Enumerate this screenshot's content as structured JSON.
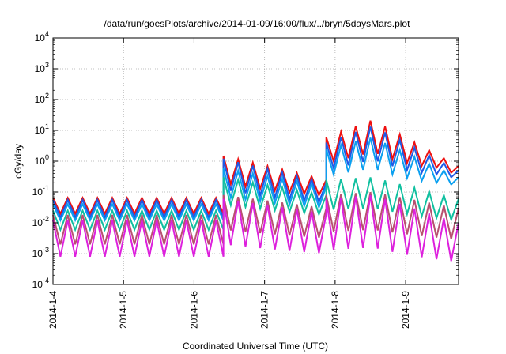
{
  "chart_data": {
    "type": "line",
    "title": "/data/run/goesPlots/archive/2014-01-09/16:00/flux/../bryn/5daysMars.plot",
    "xlabel": "Coordinated Universal Time (UTC)",
    "ylabel": "cGy/day",
    "y_scale": "log",
    "ylim": [
      0.0001,
      10000
    ],
    "xlim": [
      "2014-01-04",
      "2014-01-09 18:00"
    ],
    "grid": true,
    "y_ticks": [
      {
        "base": "10",
        "exp": "-4",
        "value": 0.0001
      },
      {
        "base": "10",
        "exp": "-3",
        "value": 0.001
      },
      {
        "base": "10",
        "exp": "-2",
        "value": 0.01
      },
      {
        "base": "10",
        "exp": "-1",
        "value": 0.1
      },
      {
        "base": "10",
        "exp": "0",
        "value": 1
      },
      {
        "base": "10",
        "exp": "1",
        "value": 10
      },
      {
        "base": "10",
        "exp": "2",
        "value": 100
      },
      {
        "base": "10",
        "exp": "3",
        "value": 1000
      },
      {
        "base": "10",
        "exp": "4",
        "value": 10000
      }
    ],
    "x_ticks": [
      {
        "label": "2014-1-4",
        "value": "2014-01-04"
      },
      {
        "label": "2014-1-5",
        "value": "2014-01-05"
      },
      {
        "label": "2014-1-6",
        "value": "2014-01-06"
      },
      {
        "label": "2014-1-7",
        "value": "2014-01-07"
      },
      {
        "label": "2014-1-8",
        "value": "2014-01-08"
      },
      {
        "label": "2014-1-9",
        "value": "2014-01-09"
      }
    ],
    "series": [
      {
        "color": "#ee1111",
        "phases": [
          {
            "start": "2014-01-04 00:00",
            "end": "2014-01-06 10:00",
            "low": 0.02,
            "high": 0.065,
            "profile": "flat"
          },
          {
            "start": "2014-01-06 10:00",
            "end": "2014-01-07 21:00",
            "low": 0.1,
            "high": 1.5,
            "profile": "decay",
            "decay_to": 0.25
          },
          {
            "start": "2014-01-07 21:00",
            "end": "2014-01-09 18:00",
            "low": 1.0,
            "high": 22,
            "profile": "hump",
            "start_peak": 6,
            "mid_peak": 22,
            "end_peak": 0.7
          }
        ]
      },
      {
        "color": "#1e5ae6",
        "phases": [
          {
            "start": "2014-01-04 00:00",
            "end": "2014-01-06 10:00",
            "low": 0.015,
            "high": 0.055,
            "profile": "flat"
          },
          {
            "start": "2014-01-06 10:00",
            "end": "2014-01-07 21:00",
            "low": 0.06,
            "high": 1.2,
            "profile": "decay",
            "decay_to": 0.2
          },
          {
            "start": "2014-01-07 21:00",
            "end": "2014-01-09 18:00",
            "low": 0.6,
            "high": 15,
            "profile": "hump",
            "start_peak": 4,
            "mid_peak": 14,
            "end_peak": 0.5
          }
        ]
      },
      {
        "color": "#0aa0f0",
        "phases": [
          {
            "start": "2014-01-04 00:00",
            "end": "2014-01-06 10:00",
            "low": 0.012,
            "high": 0.04,
            "profile": "flat"
          },
          {
            "start": "2014-01-06 10:00",
            "end": "2014-01-07 21:00",
            "low": 0.035,
            "high": 0.6,
            "profile": "decay",
            "decay_to": 0.15
          },
          {
            "start": "2014-01-07 21:00",
            "end": "2014-01-09 18:00",
            "low": 0.3,
            "high": 6,
            "profile": "hump",
            "start_peak": 2.5,
            "mid_peak": 6,
            "end_peak": 0.3
          }
        ]
      },
      {
        "color": "#10c0a0",
        "phases": [
          {
            "start": "2014-01-04 00:00",
            "end": "2014-01-06 10:00",
            "low": 0.006,
            "high": 0.025,
            "profile": "flat"
          },
          {
            "start": "2014-01-06 10:00",
            "end": "2014-01-07 21:00",
            "low": 0.02,
            "high": 0.3,
            "profile": "decay",
            "decay_to": 0.08
          },
          {
            "start": "2014-01-07 21:00",
            "end": "2014-01-09 18:00",
            "low": 0.015,
            "high": 0.3,
            "profile": "hump",
            "start_peak": 0.25,
            "mid_peak": 0.3,
            "end_peak": 0.06
          }
        ]
      },
      {
        "color": "#b85070",
        "phases": [
          {
            "start": "2014-01-04 00:00",
            "end": "2014-01-06 10:00",
            "low": 0.002,
            "high": 0.018,
            "profile": "flat"
          },
          {
            "start": "2014-01-06 10:00",
            "end": "2014-01-07 21:00",
            "low": 0.003,
            "high": 0.08,
            "profile": "decay",
            "decay_to": 0.03
          },
          {
            "start": "2014-01-07 21:00",
            "end": "2014-01-09 18:00",
            "low": 0.003,
            "high": 0.1,
            "profile": "hump",
            "start_peak": 0.08,
            "mid_peak": 0.1,
            "end_peak": 0.03
          }
        ]
      },
      {
        "color": "#dd20dd",
        "phases": [
          {
            "start": "2014-01-04 00:00",
            "end": "2014-01-06 10:00",
            "low": 0.0008,
            "high": 0.012,
            "profile": "flat"
          },
          {
            "start": "2014-01-06 10:00",
            "end": "2014-01-07 21:00",
            "low": 0.001,
            "high": 0.06,
            "profile": "decay",
            "decay_to": 0.02
          },
          {
            "start": "2014-01-07 21:00",
            "end": "2014-01-09 18:00",
            "low": 0.0008,
            "high": 0.08,
            "profile": "hump",
            "start_peak": 0.06,
            "mid_peak": 0.08,
            "end_peak": 0.01
          }
        ]
      }
    ]
  }
}
